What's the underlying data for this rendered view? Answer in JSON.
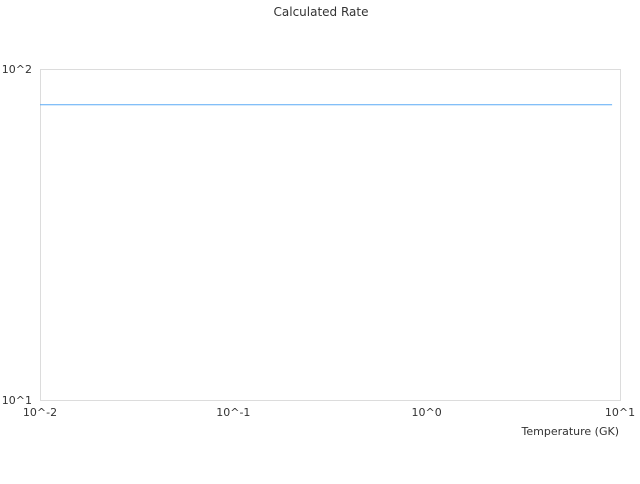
{
  "chart_data": {
    "type": "line",
    "title": "Calculated Rate",
    "xlabel": "Temperature (GK)",
    "ylabel": "",
    "x_scale": "log",
    "y_scale": "log",
    "xlim": [
      0.01,
      10
    ],
    "ylim": [
      10,
      100
    ],
    "x_tick_labels": [
      "10^-2",
      "10^-1",
      "10^0",
      "10^1"
    ],
    "y_tick_labels": [
      "10^1",
      "10^2"
    ],
    "grid": false,
    "series": [
      {
        "color": "#5aaaf5",
        "x": [
          0.01,
          9.1
        ],
        "y": [
          78,
          78
        ]
      }
    ]
  }
}
